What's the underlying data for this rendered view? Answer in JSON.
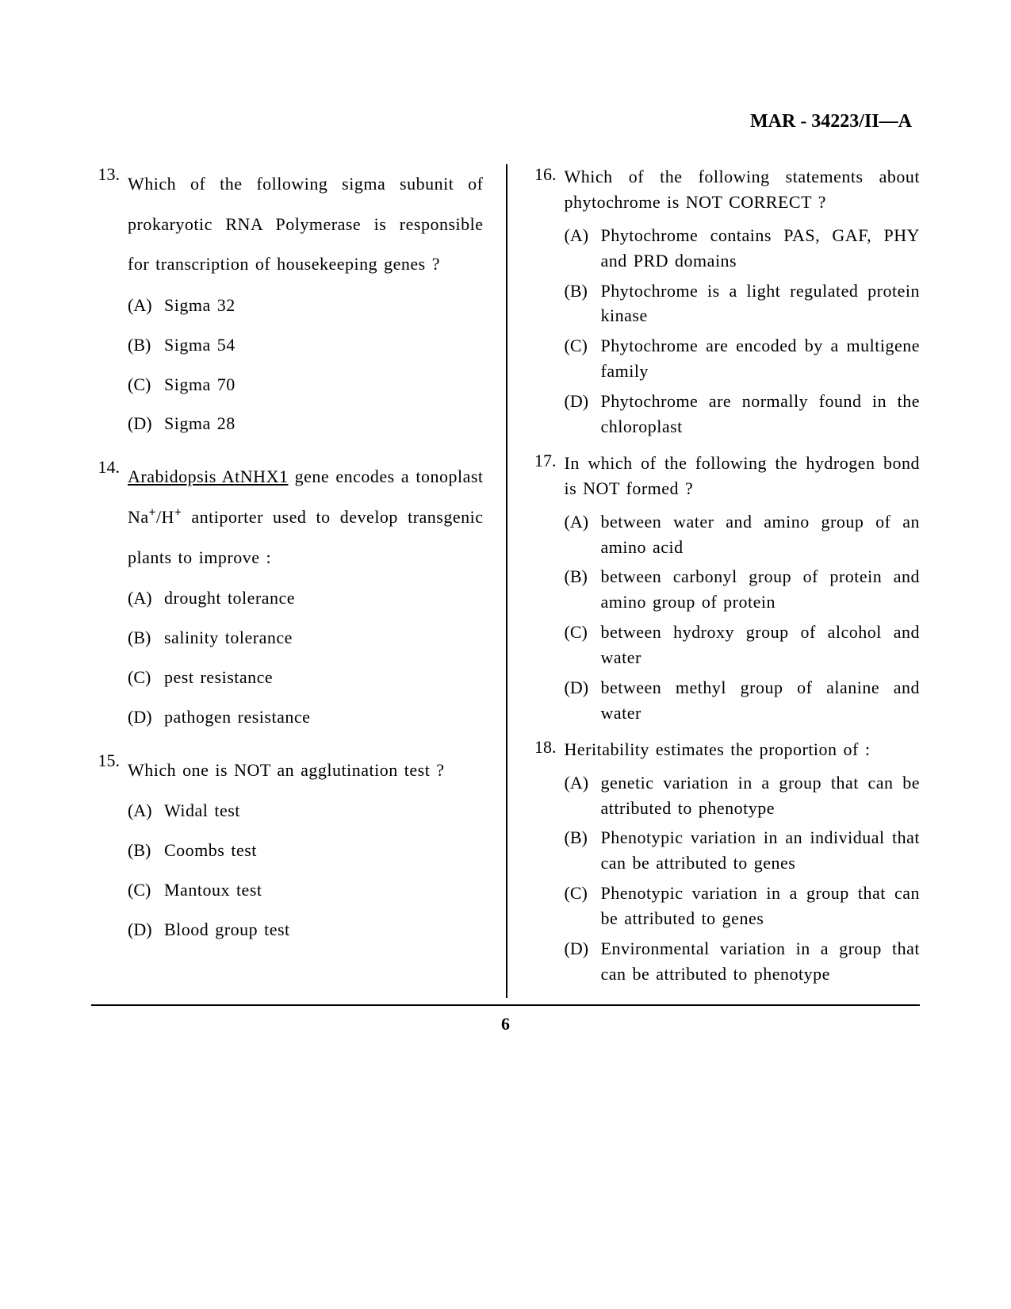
{
  "header": "MAR - 34223/II—A",
  "page_number": "6",
  "left_questions": [
    {
      "num": "13.",
      "text_parts": [
        {
          "t": "Which of the following sigma subunit of prokaryotic RNA Polymerase is responsible for transcription of housekeeping genes ?"
        }
      ],
      "loose": true,
      "options_loose": true,
      "options": [
        {
          "label": "(A)",
          "text": "Sigma 32"
        },
        {
          "label": "(B)",
          "text": "Sigma 54"
        },
        {
          "label": "(C)",
          "text": "Sigma 70"
        },
        {
          "label": "(D)",
          "text": "Sigma 28"
        }
      ]
    },
    {
      "num": "14.",
      "html": "<span class=\"underline\">Arabidopsis AtNHX1</span> gene encodes a tonoplast Na<span class=\"sup\">+</span>/H<span class=\"sup\">+</span> antiporter used to develop transgenic plants to improve :",
      "loose": true,
      "options_loose": true,
      "options": [
        {
          "label": "(A)",
          "text": "drought tolerance"
        },
        {
          "label": "(B)",
          "text": "salinity tolerance"
        },
        {
          "label": "(C)",
          "text": "pest resistance"
        },
        {
          "label": "(D)",
          "text": "pathogen resistance"
        }
      ]
    },
    {
      "num": "15.",
      "text_parts": [
        {
          "t": "Which one is NOT an agglutination test ?"
        }
      ],
      "loose": true,
      "options_loose": true,
      "options": [
        {
          "label": "(A)",
          "text": "Widal test"
        },
        {
          "label": "(B)",
          "text": "Coombs test"
        },
        {
          "label": "(C)",
          "text": "Mantoux test"
        },
        {
          "label": "(D)",
          "text": "Blood group test"
        }
      ]
    }
  ],
  "right_questions": [
    {
      "num": "16.",
      "text_parts": [
        {
          "t": "Which of the following statements about phytochrome is NOT CORRECT ?"
        }
      ],
      "options": [
        {
          "label": "(A)",
          "text": "Phytochrome contains PAS, GAF, PHY and PRD domains"
        },
        {
          "label": "(B)",
          "text": "Phytochrome is a light regulated protein kinase"
        },
        {
          "label": "(C)",
          "text": "Phytochrome are encoded by a multigene family"
        },
        {
          "label": "(D)",
          "text": "Phytochrome are normally found in the chloroplast"
        }
      ]
    },
    {
      "num": "17.",
      "text_parts": [
        {
          "t": "In which of the following the hydrogen bond is NOT formed ?"
        }
      ],
      "options": [
        {
          "label": "(A)",
          "text": "between water and amino group of an amino acid"
        },
        {
          "label": "(B)",
          "text": "between carbonyl group of protein and amino group of protein"
        },
        {
          "label": "(C)",
          "text": "between hydroxy group of alcohol and water"
        },
        {
          "label": "(D)",
          "text": "between methyl group of alanine and water"
        }
      ]
    },
    {
      "num": "18.",
      "text_parts": [
        {
          "t": "Heritability estimates the proportion of :"
        }
      ],
      "options": [
        {
          "label": "(A)",
          "text": "genetic variation in a group that can be attributed to phenotype"
        },
        {
          "label": "(B)",
          "text": "Phenotypic variation in an individual that can be attributed to genes"
        },
        {
          "label": "(C)",
          "text": "Phenotypic variation in a group that can be attributed to genes"
        },
        {
          "label": "(D)",
          "text": "Environmental variation in a group that can be attributed to phenotype"
        }
      ]
    }
  ]
}
